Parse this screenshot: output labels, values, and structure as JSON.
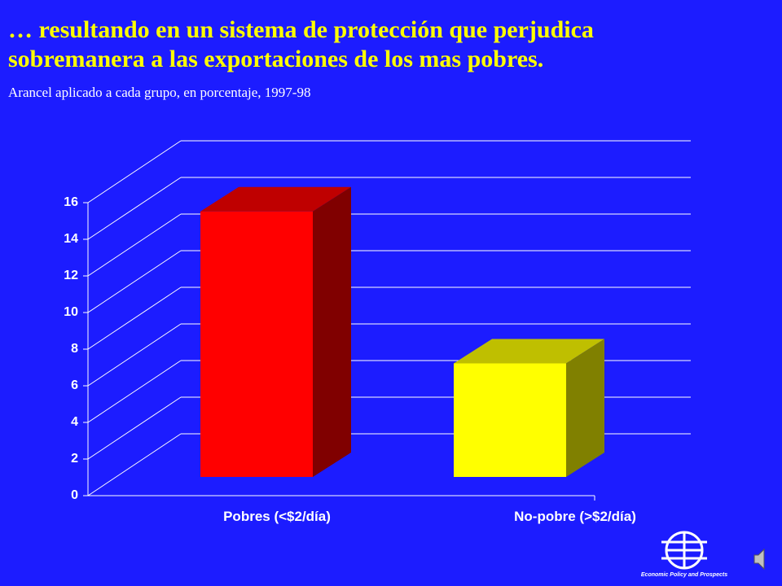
{
  "chart_data": {
    "type": "bar",
    "title": "… resultando en un sistema de protección que perjudica sobremanera a las exportaciones de los mas pobres.",
    "subtitle": "Arancel aplicado a cada grupo, en porcentaje, 1997-98",
    "categories": [
      "Pobres (<$2/día)",
      "No-pobre (>$2/día)"
    ],
    "values": [
      14.5,
      6.2
    ],
    "colors": [
      "#ff0000",
      "#ffff00"
    ],
    "ylim": [
      0,
      16
    ],
    "yticks": [
      0,
      2,
      4,
      6,
      8,
      10,
      12,
      14,
      16
    ],
    "grid": true
  },
  "logo_text": "Economic Policy and Prospects"
}
